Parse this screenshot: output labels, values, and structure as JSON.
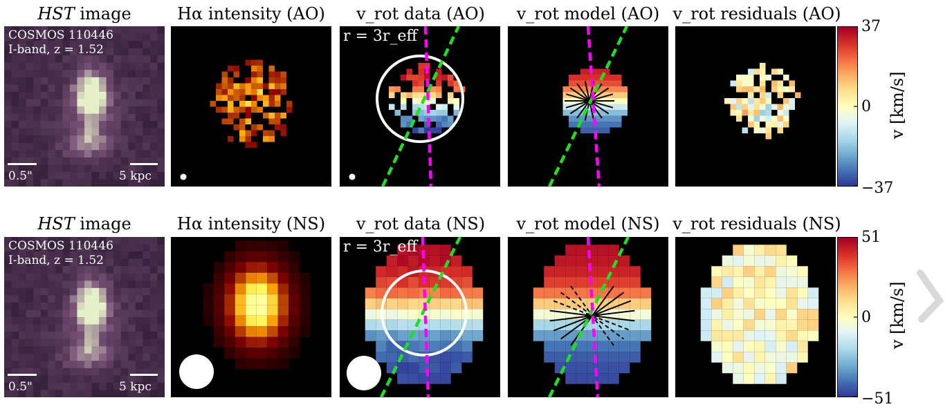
{
  "chart_data": [
    {
      "type": "heatmap",
      "row": "AO",
      "panels": [
        {
          "kind": "hst",
          "title": "image",
          "title_prefix": "HST",
          "object": "COSMOS 110446",
          "band_line": "I-band, z = 1.52",
          "scale_left": "0.5\"",
          "scale_right": "5 kpc"
        },
        {
          "kind": "intensity",
          "title": "Hα intensity (AO)",
          "psf": "small"
        },
        {
          "kind": "vdata",
          "title": "v_rot data (AO)",
          "radius_label": "r = 3r_eff",
          "psf": "small"
        },
        {
          "kind": "vmodel",
          "title": "v_rot model (AO)"
        },
        {
          "kind": "vresid",
          "title": "v_rot residuals (AO)"
        }
      ],
      "colorbar": {
        "label": "v [km/s]",
        "ticks": [
          "37",
          "0",
          "−37"
        ],
        "range": [
          -37,
          37
        ]
      },
      "lines": {
        "major_axis_color": "#ff00ff",
        "kinematic_axis_color": "#22dd22"
      }
    },
    {
      "type": "heatmap",
      "row": "NS",
      "panels": [
        {
          "kind": "hst",
          "title": "image",
          "title_prefix": "HST",
          "object": "COSMOS 110446",
          "band_line": "I-band, z = 1.52",
          "scale_left": "0.5\"",
          "scale_right": "5 kpc"
        },
        {
          "kind": "intensity",
          "title": "Hα intensity (NS)",
          "psf": "large"
        },
        {
          "kind": "vdata",
          "title": "v_rot data (NS)",
          "radius_label": "r = 3r_eff",
          "psf": "large"
        },
        {
          "kind": "vmodel",
          "title": "v_rot model (NS)"
        },
        {
          "kind": "vresid",
          "title": "v_rot residuals (NS)"
        }
      ],
      "colorbar": {
        "label": "v [km/s]",
        "ticks": [
          "51",
          "0",
          "−51"
        ],
        "range": [
          -51,
          51
        ]
      },
      "lines": {
        "major_axis_color": "#ff00ff",
        "kinematic_axis_color": "#22dd22"
      }
    }
  ]
}
